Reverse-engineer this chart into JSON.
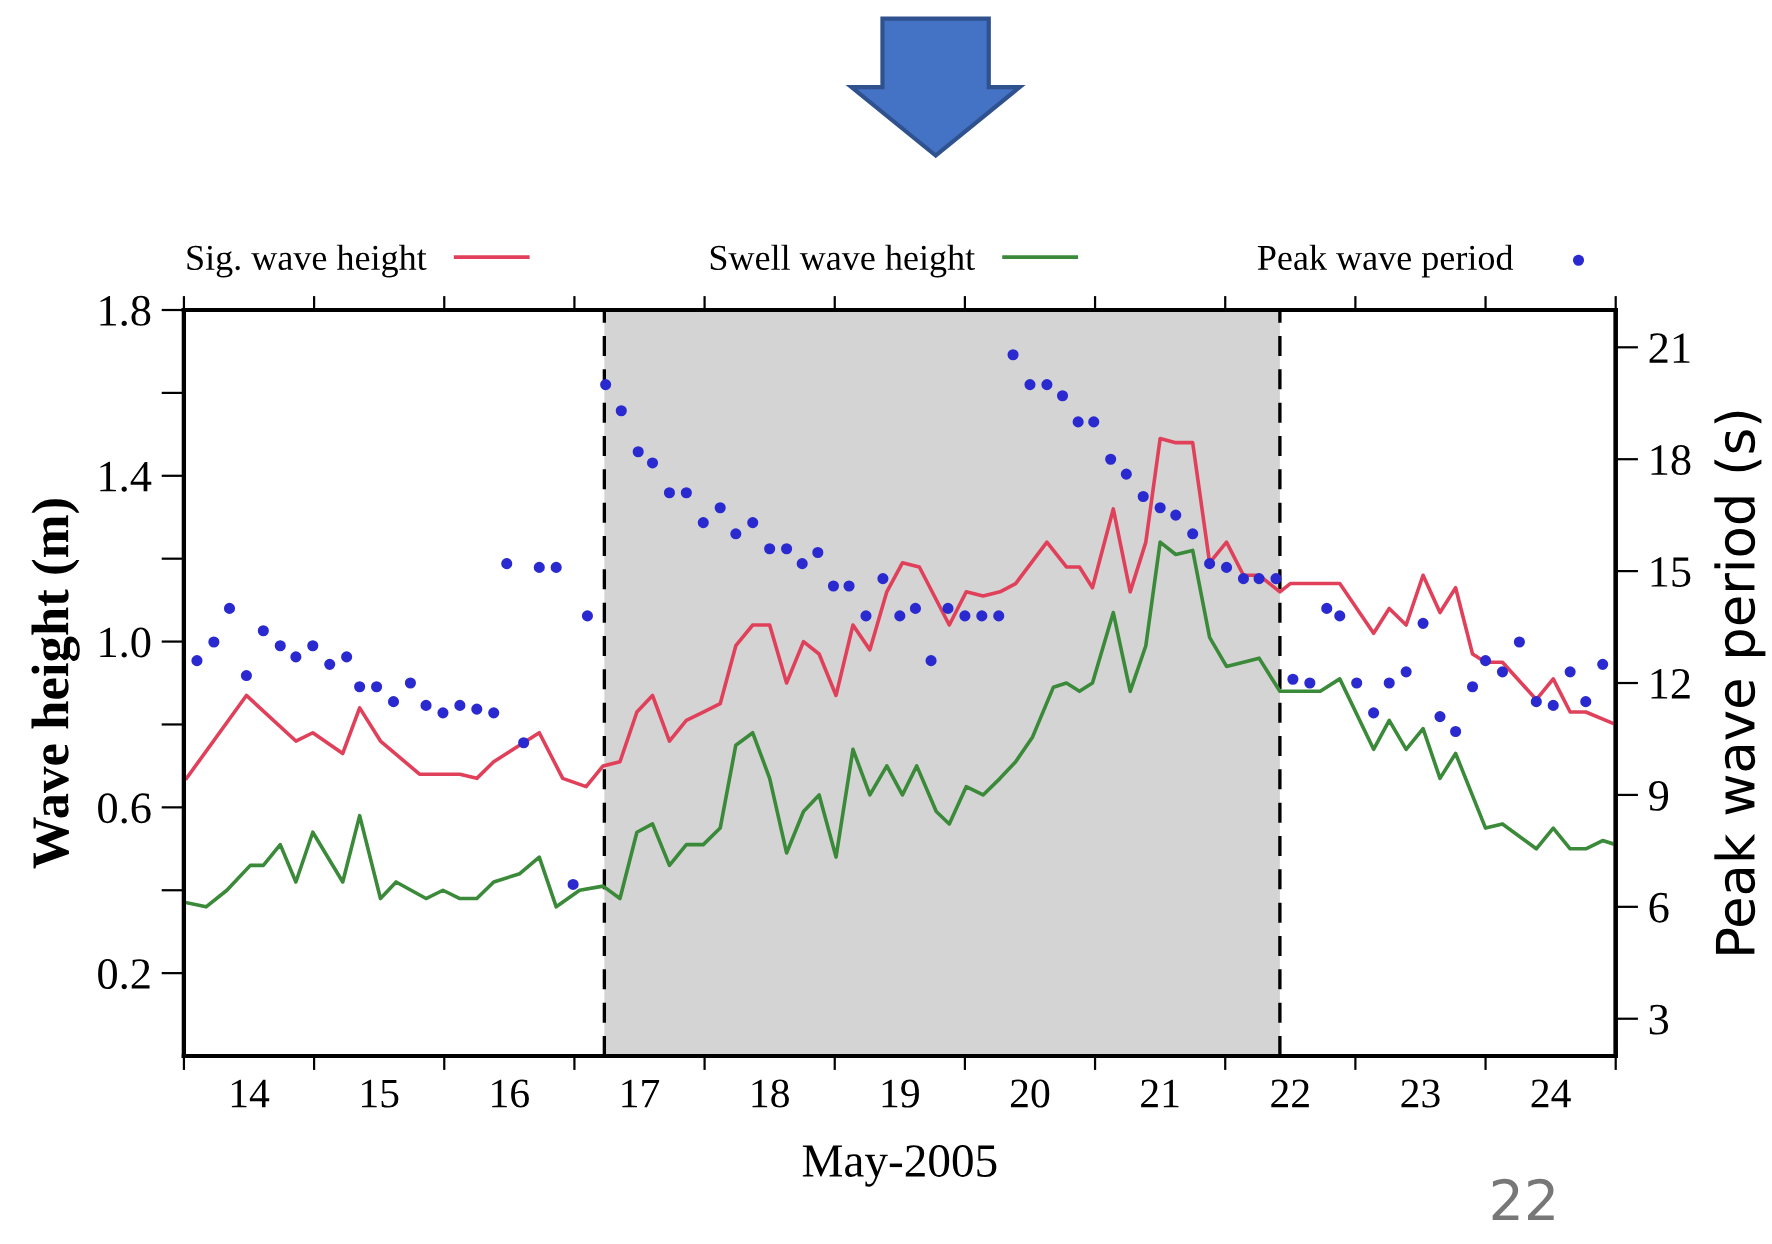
{
  "chart_data": {
    "type": "line",
    "xlabel": "May-2005",
    "ylabel": "Wave height (m)",
    "y2label": "Peak wave period (s)",
    "xlim": [
      14,
      25
    ],
    "xticks": [
      {
        "value": 14,
        "label": null
      },
      {
        "value": 15,
        "label": null
      },
      {
        "value": 16,
        "label": null
      },
      {
        "value": 17,
        "label": null
      },
      {
        "value": 18,
        "label": null
      },
      {
        "value": 19,
        "label": null
      },
      {
        "value": 20,
        "label": null
      },
      {
        "value": 21,
        "label": null
      },
      {
        "value": 22,
        "label": null
      },
      {
        "value": 23,
        "label": null
      },
      {
        "value": 24,
        "label": null
      },
      {
        "value": 25,
        "label": null
      },
      {
        "value": 14.5,
        "label": "14"
      },
      {
        "value": 15.5,
        "label": "15"
      },
      {
        "value": 16.5,
        "label": "16"
      },
      {
        "value": 17.5,
        "label": "17"
      },
      {
        "value": 18.5,
        "label": "18"
      },
      {
        "value": 19.5,
        "label": "19"
      },
      {
        "value": 20.5,
        "label": "20"
      },
      {
        "value": 21.5,
        "label": "21"
      },
      {
        "value": 22.5,
        "label": "22"
      },
      {
        "value": 23.5,
        "label": "23"
      },
      {
        "value": 24.5,
        "label": "24"
      }
    ],
    "ylim": [
      0,
      1.8
    ],
    "yticks": [
      {
        "value": 0.2,
        "label": "0.2"
      },
      {
        "value": 0.4,
        "label": null
      },
      {
        "value": 0.6,
        "label": "0.6"
      },
      {
        "value": 0.8,
        "label": null
      },
      {
        "value": 1.0,
        "label": "1.0"
      },
      {
        "value": 1.2,
        "label": null
      },
      {
        "value": 1.4,
        "label": "1.4"
      },
      {
        "value": 1.6,
        "label": null
      },
      {
        "value": 1.8,
        "label": "1.8"
      }
    ],
    "y2lim": [
      2,
      22
    ],
    "y2ticks": [
      3,
      6,
      9,
      12,
      15,
      18,
      21
    ],
    "legend": "top",
    "grid": false,
    "bands": [
      {
        "axis": "x",
        "from": 17.23,
        "to": 22.42,
        "color": "#d4d4d4"
      }
    ],
    "ref_lines": [
      {
        "axis": "x",
        "value": 17.23,
        "color": "#000000",
        "line_style": "dashed"
      },
      {
        "axis": "x",
        "value": 22.42,
        "color": "#000000",
        "line_style": "dashed"
      }
    ],
    "annotations": [
      "22"
    ],
    "series": [
      {
        "name": "Sig. wave height",
        "color": "#e0405a",
        "marker": "none",
        "line_style": "solid",
        "x": [
          14.02,
          14.48,
          14.86,
          14.99,
          15.22,
          15.35,
          15.51,
          15.81,
          16.12,
          16.25,
          16.38,
          16.73,
          16.91,
          17.09,
          17.22,
          17.35,
          17.48,
          17.6,
          17.73,
          17.86,
          17.99,
          18.12,
          18.24,
          18.37,
          18.5,
          18.63,
          18.76,
          18.88,
          19.01,
          19.14,
          19.27,
          19.4,
          19.52,
          19.65,
          19.88,
          20.01,
          20.14,
          20.27,
          20.39,
          20.63,
          20.78,
          20.88,
          20.98,
          21.14,
          21.27,
          21.39,
          21.5,
          21.62,
          21.75,
          21.88,
          22.01,
          22.14,
          22.26,
          22.42,
          22.5,
          22.88,
          23.14,
          23.26,
          23.39,
          23.52,
          23.65,
          23.77,
          23.9,
          24.0,
          24.13,
          24.39,
          24.52,
          24.65,
          24.77,
          25.0
        ],
        "values": [
          0.67,
          0.87,
          0.76,
          0.78,
          0.73,
          0.84,
          0.76,
          0.68,
          0.68,
          0.67,
          0.71,
          0.78,
          0.67,
          0.65,
          0.7,
          0.71,
          0.83,
          0.87,
          0.76,
          0.81,
          0.83,
          0.85,
          0.99,
          1.04,
          1.04,
          0.9,
          1.0,
          0.97,
          0.87,
          1.04,
          0.98,
          1.12,
          1.19,
          1.18,
          1.04,
          1.12,
          1.11,
          1.12,
          1.14,
          1.24,
          1.18,
          1.18,
          1.13,
          1.32,
          1.12,
          1.24,
          1.49,
          1.48,
          1.48,
          1.19,
          1.24,
          1.16,
          1.16,
          1.12,
          1.14,
          1.14,
          1.02,
          1.08,
          1.04,
          1.16,
          1.07,
          1.13,
          0.97,
          0.95,
          0.95,
          0.86,
          0.91,
          0.83,
          0.83,
          0.8
        ]
      },
      {
        "name": "Swell wave height",
        "color": "#3a8a3a",
        "marker": "none",
        "line_style": "solid",
        "x": [
          14.02,
          14.17,
          14.33,
          14.51,
          14.61,
          14.74,
          14.86,
          14.99,
          15.22,
          15.35,
          15.51,
          15.63,
          15.86,
          15.99,
          16.12,
          16.25,
          16.38,
          16.58,
          16.73,
          16.86,
          17.04,
          17.22,
          17.35,
          17.48,
          17.6,
          17.73,
          17.86,
          17.99,
          18.12,
          18.24,
          18.37,
          18.5,
          18.63,
          18.76,
          18.88,
          19.01,
          19.14,
          19.27,
          19.4,
          19.52,
          19.63,
          19.78,
          19.88,
          20.01,
          20.14,
          20.27,
          20.39,
          20.52,
          20.68,
          20.78,
          20.88,
          20.98,
          21.14,
          21.27,
          21.39,
          21.5,
          21.62,
          21.75,
          21.88,
          22.01,
          22.14,
          22.26,
          22.42,
          22.52,
          22.73,
          22.88,
          23.14,
          23.26,
          23.39,
          23.52,
          23.65,
          23.77,
          24.0,
          24.13,
          24.39,
          24.52,
          24.65,
          24.77,
          24.9,
          25.0
        ],
        "values": [
          0.37,
          0.36,
          0.4,
          0.46,
          0.46,
          0.51,
          0.42,
          0.54,
          0.42,
          0.58,
          0.38,
          0.42,
          0.38,
          0.4,
          0.38,
          0.38,
          0.42,
          0.44,
          0.48,
          0.36,
          0.4,
          0.41,
          0.38,
          0.54,
          0.56,
          0.46,
          0.51,
          0.51,
          0.55,
          0.75,
          0.78,
          0.67,
          0.49,
          0.59,
          0.63,
          0.48,
          0.74,
          0.63,
          0.7,
          0.63,
          0.7,
          0.59,
          0.56,
          0.65,
          0.63,
          0.67,
          0.71,
          0.77,
          0.89,
          0.9,
          0.88,
          0.9,
          1.07,
          0.88,
          0.99,
          1.24,
          1.21,
          1.22,
          1.01,
          0.94,
          0.95,
          0.96,
          0.88,
          0.88,
          0.88,
          0.91,
          0.74,
          0.81,
          0.74,
          0.79,
          0.67,
          0.73,
          0.55,
          0.56,
          0.5,
          0.55,
          0.5,
          0.5,
          0.52,
          0.51
        ]
      },
      {
        "name": "Peak wave period",
        "type": "scatter",
        "axis": "y2",
        "color": "#2a2ad0",
        "marker": "circle",
        "x": [
          14.1,
          14.23,
          14.35,
          14.48,
          14.61,
          14.74,
          14.86,
          14.99,
          15.12,
          15.25,
          15.35,
          15.48,
          15.61,
          15.74,
          15.86,
          15.99,
          16.12,
          16.25,
          16.38,
          16.48,
          16.61,
          16.73,
          16.86,
          16.99,
          17.1,
          17.24,
          17.36,
          17.49,
          17.6,
          17.73,
          17.86,
          17.99,
          18.12,
          18.24,
          18.37,
          18.5,
          18.63,
          18.75,
          18.87,
          18.99,
          19.11,
          19.24,
          19.37,
          19.5,
          19.62,
          19.74,
          19.87,
          20.0,
          20.13,
          20.26,
          20.37,
          20.5,
          20.63,
          20.75,
          20.87,
          20.99,
          21.12,
          21.24,
          21.37,
          21.5,
          21.62,
          21.75,
          21.88,
          22.01,
          22.14,
          22.26,
          22.39,
          22.52,
          22.65,
          22.78,
          22.88,
          23.01,
          23.14,
          23.26,
          23.39,
          23.52,
          23.65,
          23.77,
          23.9,
          24.0,
          24.13,
          24.26,
          24.39,
          24.52,
          24.65,
          24.77,
          24.9
        ],
        "values": [
          12.6,
          13.1,
          14.0,
          12.2,
          13.4,
          13.0,
          12.7,
          13.0,
          12.5,
          12.7,
          11.9,
          11.9,
          11.5,
          12.0,
          11.4,
          11.2,
          11.4,
          11.3,
          11.2,
          15.2,
          10.4,
          15.1,
          15.1,
          6.6,
          13.8,
          20.0,
          19.3,
          18.2,
          17.9,
          17.1,
          17.1,
          16.3,
          16.7,
          16.0,
          16.3,
          15.6,
          15.6,
          15.2,
          15.5,
          14.6,
          14.6,
          13.8,
          14.8,
          13.8,
          14.0,
          12.6,
          14.0,
          13.8,
          13.8,
          13.8,
          20.8,
          20.0,
          20.0,
          19.7,
          19.0,
          19.0,
          18.0,
          17.6,
          17.0,
          16.7,
          16.5,
          16.0,
          15.2,
          15.1,
          14.8,
          14.8,
          14.8,
          12.1,
          12.0,
          14.0,
          13.8,
          12.0,
          11.2,
          12.0,
          12.3,
          13.6,
          11.1,
          10.7,
          11.9,
          12.6,
          12.3,
          13.1,
          11.5,
          11.4,
          12.3,
          11.5,
          12.5
        ]
      }
    ]
  }
}
